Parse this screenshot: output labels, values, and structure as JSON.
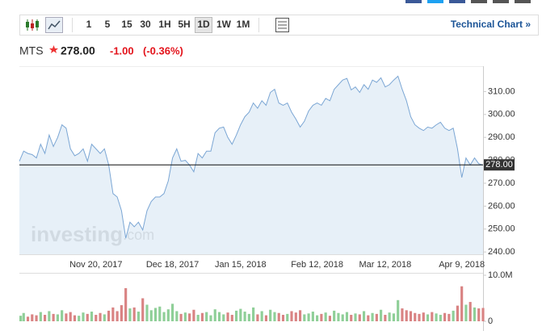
{
  "toolbar": {
    "intervals": [
      "1",
      "5",
      "15",
      "30",
      "1H",
      "5H",
      "1D",
      "1W",
      "1M"
    ],
    "selected": "1D",
    "technical_link": "Technical Chart »"
  },
  "header": {
    "symbol": "MTS",
    "price": "278.00",
    "change": "-1.00",
    "change_pct": "(-0.36%)"
  },
  "chart_data": {
    "type": "area",
    "color": "#7ba6d4",
    "fill": "#e3edf7",
    "categories": [
      null,
      null,
      null,
      null,
      null,
      null,
      null,
      null,
      null,
      null,
      null,
      null,
      null,
      null,
      null,
      null,
      null,
      null,
      "Nov 20, 2017",
      null,
      null,
      null,
      null,
      null,
      null,
      null,
      null,
      null,
      null,
      null,
      null,
      null,
      null,
      null,
      null,
      null,
      "Dec 18, 2017",
      null,
      null,
      null,
      null,
      null,
      null,
      null,
      null,
      null,
      null,
      null,
      null,
      null,
      null,
      null,
      "Jan 15, 2018",
      null,
      null,
      null,
      null,
      null,
      null,
      null,
      null,
      null,
      null,
      null,
      null,
      null,
      null,
      null,
      null,
      null,
      "Feb 12, 2018",
      null,
      null,
      null,
      null,
      null,
      null,
      null,
      null,
      null,
      null,
      null,
      null,
      null,
      null,
      null,
      "Mar 12, 2018",
      null,
      null,
      null,
      null,
      null,
      null,
      null,
      null,
      null,
      null,
      null,
      null,
      null,
      null,
      null,
      null,
      null,
      "Apr 9, 2018",
      null,
      null,
      null,
      null,
      null
    ],
    "values": [
      279.6,
      284,
      283,
      282.5,
      281,
      287,
      283,
      291,
      286,
      290,
      295.5,
      294,
      285,
      282,
      283,
      285,
      279.6,
      287,
      285,
      283,
      285,
      278,
      265.5,
      264,
      258,
      246,
      253,
      251,
      253,
      249.6,
      258,
      262,
      264,
      264,
      265.5,
      271,
      281,
      285,
      279.6,
      280,
      278,
      275,
      283,
      281,
      284,
      284,
      292,
      294,
      294.5,
      290,
      287,
      291,
      295.5,
      299,
      301,
      305,
      302.7,
      306,
      304,
      309.6,
      311,
      305,
      304,
      305,
      301,
      298,
      294.5,
      297,
      301.5,
      304,
      305,
      304,
      307,
      306,
      311,
      313,
      315,
      315.7,
      310.7,
      312,
      309.6,
      313,
      311,
      315,
      314,
      316,
      312,
      313,
      315,
      316.7,
      311,
      306,
      299,
      295.5,
      294,
      293,
      294.5,
      294,
      295.5,
      296.6,
      294,
      293,
      294,
      285,
      272.5,
      281,
      278,
      281,
      278.5,
      278
    ],
    "ylim": [
      239,
      320
    ],
    "yticks": [
      {
        "value": 240,
        "label": "240.00"
      },
      {
        "value": 250,
        "label": "250.00"
      },
      {
        "value": 260,
        "label": "260.00"
      },
      {
        "value": 270,
        "label": "270.00"
      },
      {
        "value": 280,
        "label": "280.00"
      },
      {
        "value": 290,
        "label": "290.00"
      },
      {
        "value": 300,
        "label": "300.00"
      },
      {
        "value": 310,
        "label": "310.00"
      }
    ],
    "last_price": {
      "value": 278,
      "label": "278.00"
    },
    "watermark": {
      "brand": "investing",
      "domain": ".com"
    },
    "volume": {
      "type": "bar",
      "up_color": "#8fcf98",
      "down_color": "#d98383",
      "values": [
        1200000,
        1800000,
        1000000,
        1500000,
        1300000,
        2000000,
        1400000,
        2200000,
        1600000,
        1500000,
        2400000,
        1700000,
        2000000,
        1300000,
        1200000,
        1900000,
        1600000,
        2100000,
        1400000,
        1800000,
        1500000,
        2300000,
        3000000,
        2200000,
        3500000,
        7200000,
        2800000,
        3000000,
        2100000,
        5000000,
        3600000,
        2400000,
        2900000,
        3200000,
        2000000,
        2600000,
        3800000,
        2200000,
        1600000,
        1900000,
        1700000,
        2500000,
        1400000,
        1800000,
        2000000,
        1300000,
        2600000,
        2000000,
        1500000,
        1900000,
        1400000,
        2300000,
        2700000,
        2100000,
        1600000,
        3000000,
        1500000,
        2200000,
        1300000,
        2500000,
        2000000,
        1800000,
        1400000,
        1600000,
        2200000,
        1900000,
        2400000,
        1500000,
        1700000,
        2100000,
        1300000,
        1600000,
        1900000,
        1200000,
        2300000,
        1800000,
        1500000,
        2000000,
        1400000,
        1700000,
        1500000,
        2200000,
        1300000,
        1800000,
        1600000,
        2500000,
        1400000,
        1900000,
        1700000,
        4600000,
        2800000,
        2400000,
        2200000,
        1800000,
        1600000,
        1900000,
        1500000,
        2000000,
        1700000,
        1400000,
        1800000,
        1600000,
        2300000,
        3400000,
        7600000,
        3600000,
        4200000,
        3000000,
        2800000,
        2900000
      ],
      "ylim": [
        0,
        10000000
      ],
      "yticks": [
        0,
        {
          "value": 10000000,
          "label": "10.0M"
        }
      ]
    }
  }
}
